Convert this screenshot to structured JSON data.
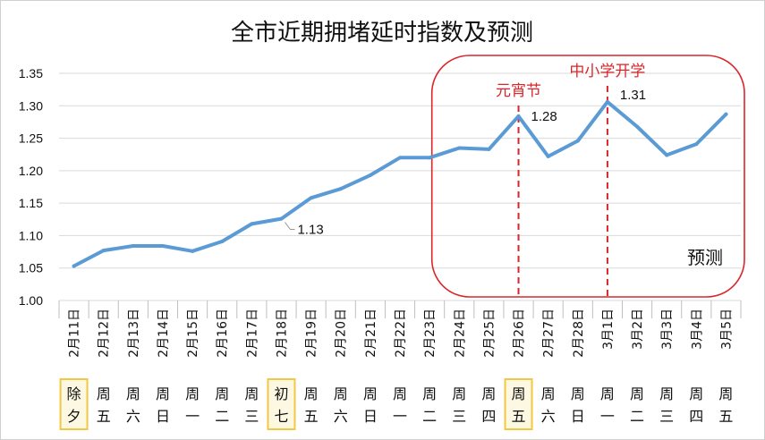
{
  "chart_data": {
    "type": "line",
    "title": "全市近期拥堵延时指数及预测",
    "categories": [
      "2月11日",
      "2月12日",
      "2月13日",
      "2月14日",
      "2月15日",
      "2月16日",
      "2月17日",
      "2月18日",
      "2月19日",
      "2月20日",
      "2月21日",
      "2月22日",
      "2月23日",
      "2月24日",
      "2月25日",
      "2月26日",
      "2月27日",
      "2月28日",
      "3月1日",
      "3月2日",
      "3月3日",
      "3月4日",
      "3月5日"
    ],
    "weekday_labels": [
      "除夕",
      "周五",
      "周六",
      "周日",
      "周一",
      "周二",
      "周三",
      "初七",
      "周五",
      "周六",
      "周日",
      "周一",
      "周二",
      "周三",
      "周四",
      "周五",
      "周六",
      "周日",
      "周一",
      "周二",
      "周三",
      "周四",
      "周五"
    ],
    "highlighted_weekday_indices": [
      0,
      7,
      15
    ],
    "series": [
      {
        "values": [
          1.053,
          1.077,
          1.084,
          1.084,
          1.076,
          1.091,
          1.118,
          1.126,
          1.158,
          1.172,
          1.193,
          1.22,
          1.22,
          1.235,
          1.233,
          1.284,
          1.222,
          1.246,
          1.306,
          1.268,
          1.224,
          1.241,
          1.287
        ]
      }
    ],
    "ylim": [
      1.0,
      1.35
    ],
    "yticks": [
      "1.00",
      "1.05",
      "1.10",
      "1.15",
      "1.20",
      "1.25",
      "1.30",
      "1.35"
    ],
    "grid": true,
    "line_color": "#5b9bd5",
    "annotation_color": "#d9262b",
    "highlight_color": "#f2c744",
    "point_labels": [
      {
        "index": 7,
        "text": "1.13"
      },
      {
        "index": 15,
        "text": "1.28"
      },
      {
        "index": 18,
        "text": "1.31"
      }
    ],
    "events": [
      {
        "index": 15,
        "text": "元宵节"
      },
      {
        "index": 18,
        "text": "中小学开学"
      }
    ],
    "forecast": {
      "from_index": 13,
      "to_index": 22,
      "label": "预测"
    }
  }
}
